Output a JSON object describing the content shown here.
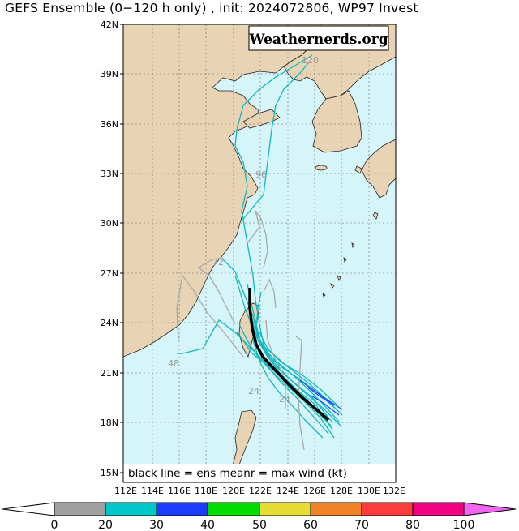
{
  "title": "GEFS Ensemble (0−120 h only) , init: 2024072806, WP97 Invest",
  "watermark": "Weathernerds.org",
  "legend_text": "black line = ens meanr = max wind (kt)",
  "lat_labels": [
    "42N",
    "39N",
    "36N",
    "33N",
    "30N",
    "27N",
    "24N",
    "21N",
    "18N",
    "15N"
  ],
  "lon_labels": [
    "112E",
    "114E",
    "116E",
    "118E",
    "120E",
    "122E",
    "124E",
    "126E",
    "128E",
    "130E",
    "132E"
  ],
  "forecast_hour_labels": [
    "120",
    "96",
    "72",
    "48",
    "24",
    "24"
  ],
  "colorbar": {
    "ticks": [
      "0",
      "20",
      "30",
      "40",
      "50",
      "60",
      "70",
      "80",
      "100"
    ],
    "colors": [
      "#a0a0a0",
      "#00c8c8",
      "#1e3cff",
      "#00dc00",
      "#e6dc32",
      "#f08228",
      "#fa3c3c",
      "#f00082",
      "#f064f0"
    ]
  },
  "colors": {
    "land": "#e8d4b4",
    "ocean": "#d6f5f8",
    "mean_track": "#000000"
  }
}
